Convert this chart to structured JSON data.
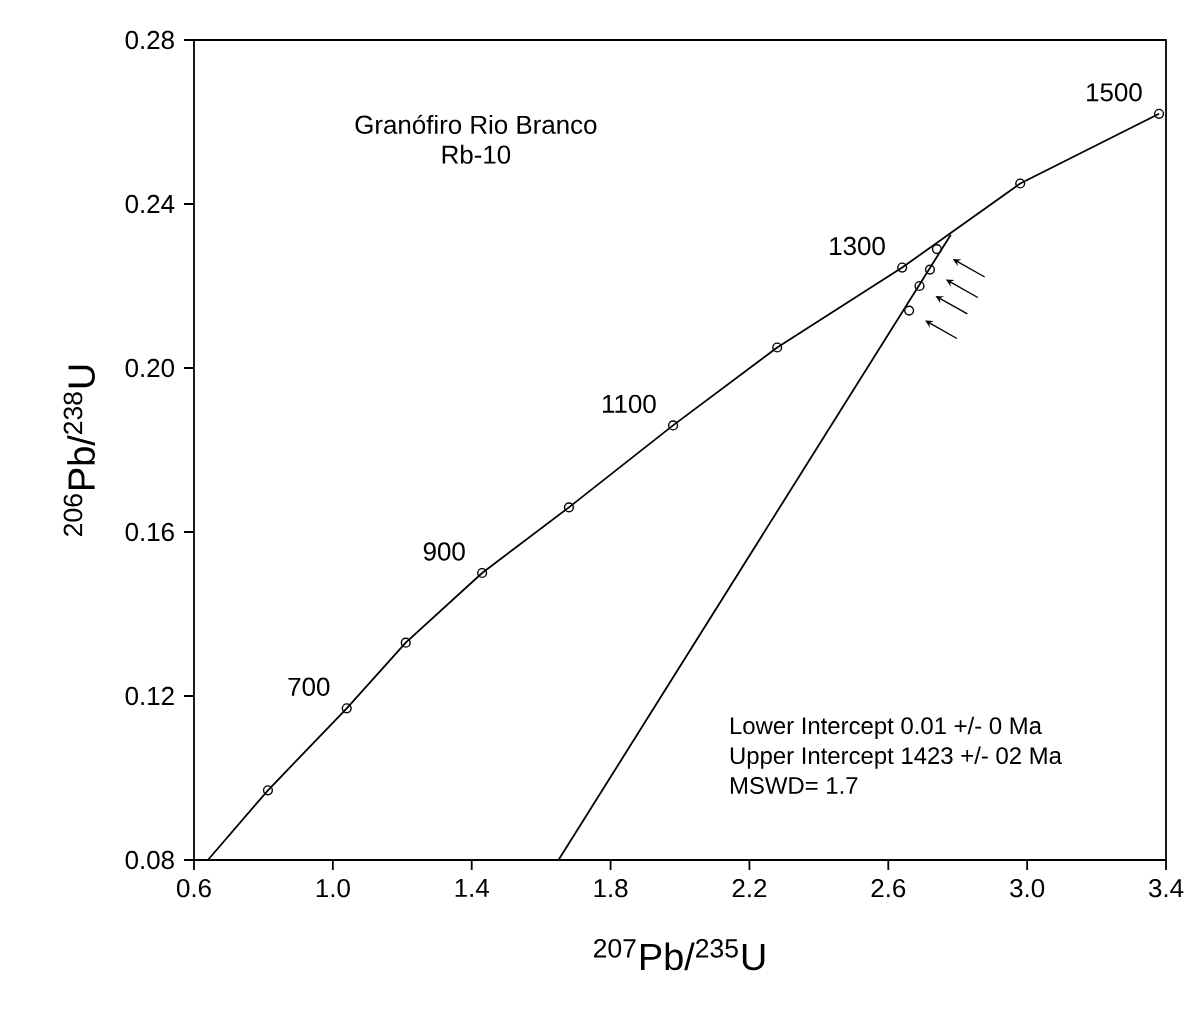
{
  "chart_data": {
    "type": "line",
    "title": "Granófiro Rio Branco",
    "subtitle": "Rb-10",
    "xlabel": "$^{207}$Pb/$^{235}$U",
    "ylabel": "$^{206}$Pb/$^{238}$U",
    "xlim": [
      0.6,
      3.4
    ],
    "ylim": [
      0.08,
      0.28
    ],
    "xticks": [
      0.6,
      {
        "value": 1.0,
        "label": "1.0"
      },
      1.4,
      1.8,
      2.2,
      2.6,
      {
        "value": 3.0,
        "label": "3.0"
      },
      3.4
    ],
    "yticks": [
      0.08,
      0.12,
      0.16,
      {
        "value": 0.2,
        "label": "0.20"
      },
      0.24,
      0.28
    ],
    "grid": false,
    "series": [
      {
        "color": "#000000",
        "marker": "none",
        "x": [
          0.64,
          0.813,
          1.04,
          1.21,
          1.43,
          1.68,
          1.98,
          2.28,
          2.64,
          2.98,
          3.38
        ],
        "values": [
          0.08,
          0.097,
          0.117,
          0.133,
          0.15,
          0.166,
          0.186,
          0.205,
          0.2245,
          0.245,
          0.262
        ]
      },
      {
        "type": "scatter",
        "color": "#000000",
        "marker": "circle",
        "x": [
          0.813,
          1.04,
          1.21,
          1.43,
          1.68,
          1.98,
          2.28,
          2.64,
          2.98,
          3.38
        ],
        "values": [
          0.097,
          0.117,
          0.133,
          0.15,
          0.166,
          0.186,
          0.205,
          0.2245,
          0.245,
          0.262
        ]
      },
      {
        "color": "#000000",
        "marker": "none",
        "x": [
          1.65,
          2.78
        ],
        "values": [
          0.08,
          0.2325
        ]
      },
      {
        "type": "scatter",
        "color": "#000000",
        "marker": "circle",
        "x": [
          2.74,
          2.72,
          2.69,
          2.66
        ],
        "values": [
          0.229,
          0.224,
          0.22,
          0.214
        ]
      }
    ],
    "annotations": [
      {
        "text": "700",
        "x": 1.04,
        "y": 0.117
      },
      {
        "text": "900",
        "x": 1.43,
        "y": 0.15
      },
      {
        "text": "1100",
        "x": 1.98,
        "y": 0.186
      },
      {
        "text": "1300",
        "x": 2.64,
        "y": 0.2245
      },
      {
        "text": "1500",
        "x": 3.38,
        "y": 0.262
      },
      "Lower Intercept 0.01 +/- 0 Ma",
      "Upper Intercept 1423 +/- 02 Ma",
      "MSWD= 1.7"
    ]
  }
}
